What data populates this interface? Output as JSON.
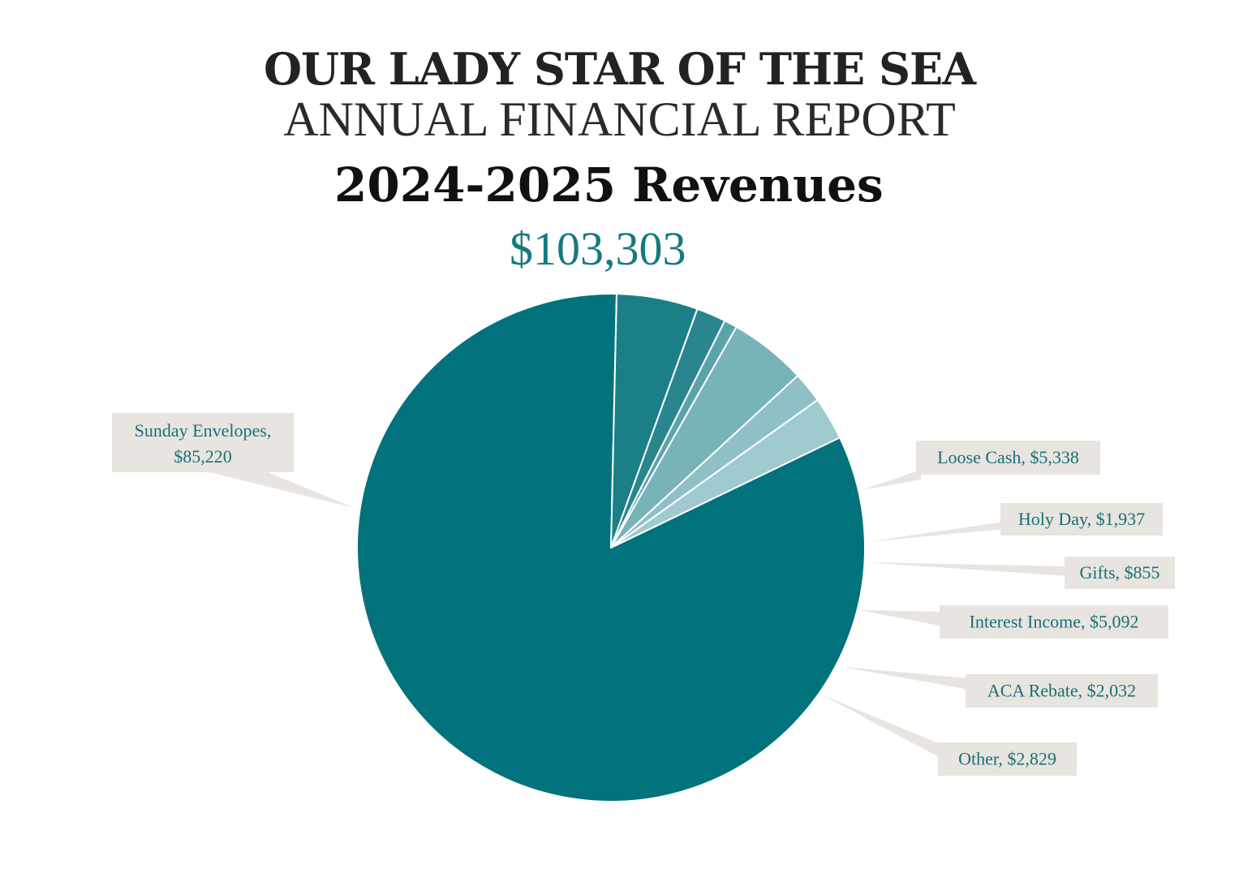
{
  "header": {
    "org": "OUR LADY STAR OF THE SEA",
    "report": "ANNUAL FINANCIAL REPORT",
    "chart_title": "2024-2025 Revenues",
    "total": "$103,303"
  },
  "chart_data": {
    "type": "pie",
    "title": "2024-2025 Revenues",
    "total": 103303,
    "slices": [
      {
        "name": "Sunday Envelopes",
        "value": 85220,
        "label": "Sunday Envelopes,",
        "value_label": "$85,220",
        "color": "#02727c"
      },
      {
        "name": "Loose Cash",
        "value": 5338,
        "label": "Loose Cash,  $5,338",
        "color": "#1b7f87"
      },
      {
        "name": "Holy Day",
        "value": 1937,
        "label": "Holy Day,  $1,937",
        "color": "#29868e"
      },
      {
        "name": "Gifts",
        "value": 855,
        "label": "Gifts,  $855",
        "color": "#5aa3aa"
      },
      {
        "name": "Interest Income",
        "value": 5092,
        "label": "Interest Income,  $5,092",
        "color": "#78b3b9"
      },
      {
        "name": "ACA Rebate",
        "value": 2032,
        "label": "ACA Rebate,  $2,032",
        "color": "#8fc0c5"
      },
      {
        "name": "Other",
        "value": 2829,
        "label": "Other,  $2,829",
        "color": "#9fcace"
      }
    ],
    "label_box_color": "#e8e4df",
    "slice_border_color": "#ffffff"
  }
}
